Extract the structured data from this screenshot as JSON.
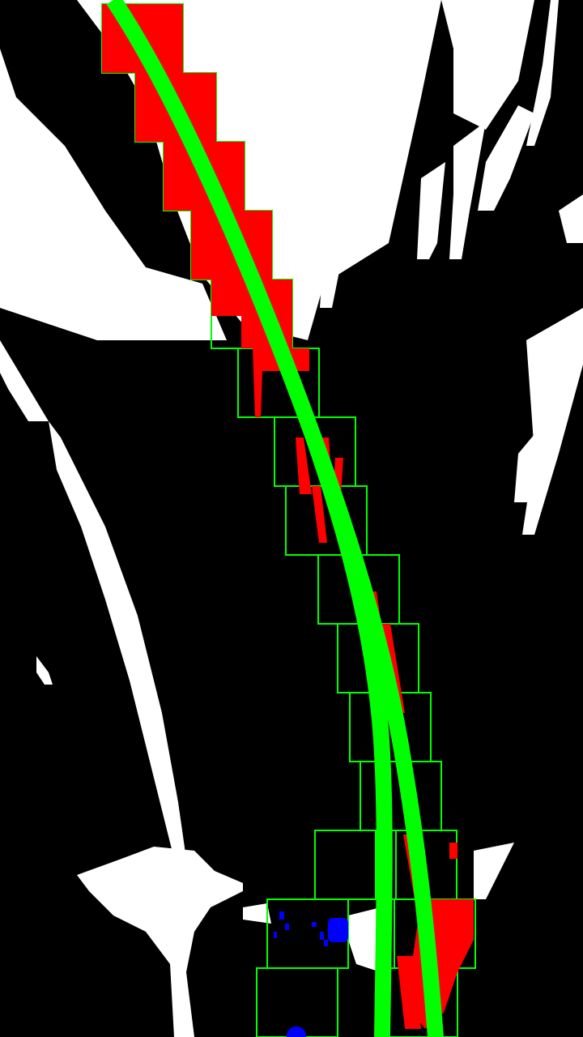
{
  "scene": {
    "type": "lane-detection-sliding-window-visualization",
    "background_color": "#000000",
    "binary_mask_color": "#ffffff",
    "lane_pixels_color": "#ff0000",
    "other_pixels_color": "#0000ff",
    "window_color": "#00ff00",
    "fitted_curve_color": "#00ff00"
  },
  "windows": {
    "right_lane_count": 15,
    "left_lane_count": 2
  },
  "fitted_curves": {
    "count": 2
  }
}
